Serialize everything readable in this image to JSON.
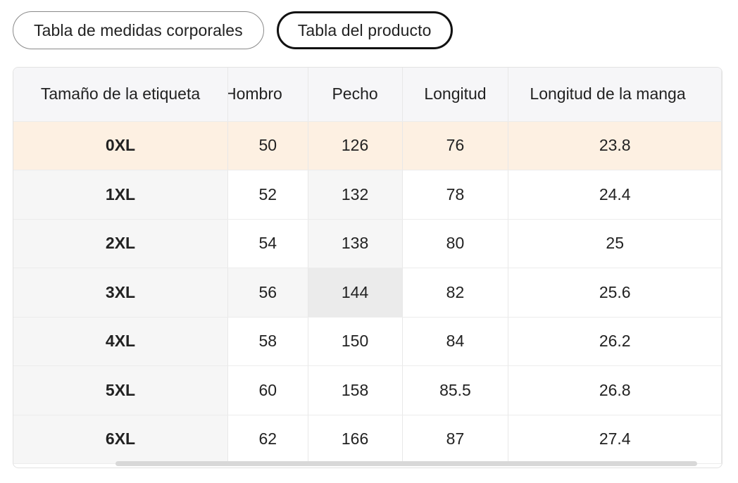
{
  "tabs": [
    {
      "label": "Tabla de medidas corporales",
      "active": false
    },
    {
      "label": "Tabla del producto",
      "active": true
    }
  ],
  "table": {
    "headers": [
      "Tamaño de la etiqueta",
      "Hombro",
      "Pecho",
      "Longitud",
      "Longitud de la manga"
    ],
    "rows": [
      [
        "0XL",
        "50",
        "126",
        "76",
        "23.8"
      ],
      [
        "1XL",
        "52",
        "132",
        "78",
        "24.4"
      ],
      [
        "2XL",
        "54",
        "138",
        "80",
        "25"
      ],
      [
        "3XL",
        "56",
        "144",
        "82",
        "25.6"
      ],
      [
        "4XL",
        "58",
        "150",
        "84",
        "26.2"
      ],
      [
        "5XL",
        "60",
        "158",
        "85.5",
        "26.8"
      ],
      [
        "6XL",
        "62",
        "166",
        "87",
        "27.4"
      ]
    ]
  },
  "colors": {
    "highlight_row": "#fdf0e2",
    "header_bg": "#f6f6f8",
    "active_border": "#111111"
  }
}
